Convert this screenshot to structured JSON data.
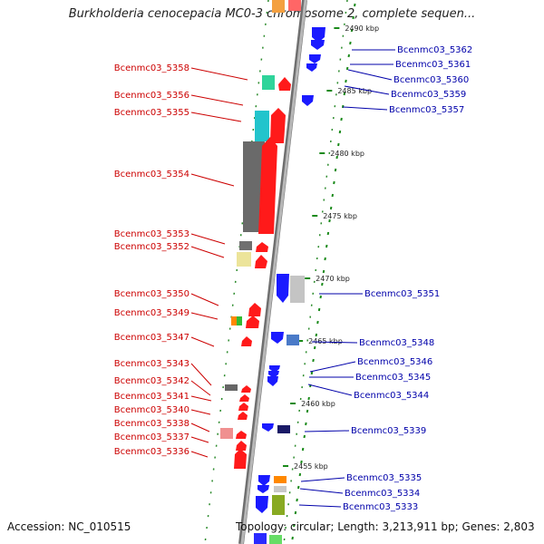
{
  "title": "Burkholderia cenocepacia MC0-3 chromosome 2, complete sequen...",
  "footer": {
    "accession": "Accession: NC_010515",
    "topology": "Topology: circular; Length: 3,213,911 bp; Genes: 2,803"
  },
  "colors": {
    "backbone": "#8c8c8c",
    "left_label": "#cc0000",
    "right_label": "#0000aa",
    "ruler_tick": "#1a8a1a"
  },
  "ruler": [
    {
      "label": "2490 kbp"
    },
    {
      "label": "2485 kbp"
    },
    {
      "label": "2480 kbp"
    },
    {
      "label": "2475 kbp"
    },
    {
      "label": "2470 kbp"
    },
    {
      "label": "2465 kbp"
    },
    {
      "label": "2460 kbp"
    },
    {
      "label": "2455 kbp"
    }
  ],
  "left_genes": [
    {
      "label": "Bcenmc03_5358"
    },
    {
      "label": "Bcenmc03_5356"
    },
    {
      "label": "Bcenmc03_5355"
    },
    {
      "label": "Bcenmc03_5354"
    },
    {
      "label": "Bcenmc03_5353"
    },
    {
      "label": "Bcenmc03_5352"
    },
    {
      "label": "Bcenmc03_5350"
    },
    {
      "label": "Bcenmc03_5349"
    },
    {
      "label": "Bcenmc03_5347"
    },
    {
      "label": "Bcenmc03_5343"
    },
    {
      "label": "Bcenmc03_5342"
    },
    {
      "label": "Bcenmc03_5341"
    },
    {
      "label": "Bcenmc03_5340"
    },
    {
      "label": "Bcenmc03_5338"
    },
    {
      "label": "Bcenmc03_5337"
    },
    {
      "label": "Bcenmc03_5336"
    }
  ],
  "right_genes": [
    {
      "label": "Bcenmc03_5362"
    },
    {
      "label": "Bcenmc03_5361"
    },
    {
      "label": "Bcenmc03_5360"
    },
    {
      "label": "Bcenmc03_5359"
    },
    {
      "label": "Bcenmc03_5357"
    },
    {
      "label": "Bcenmc03_5351"
    },
    {
      "label": "Bcenmc03_5348"
    },
    {
      "label": "Bcenmc03_5346"
    },
    {
      "label": "Bcenmc03_5345"
    },
    {
      "label": "Bcenmc03_5344"
    },
    {
      "label": "Bcenmc03_5339"
    },
    {
      "label": "Bcenmc03_5335"
    },
    {
      "label": "Bcenmc03_5334"
    },
    {
      "label": "Bcenmc03_5333"
    }
  ]
}
